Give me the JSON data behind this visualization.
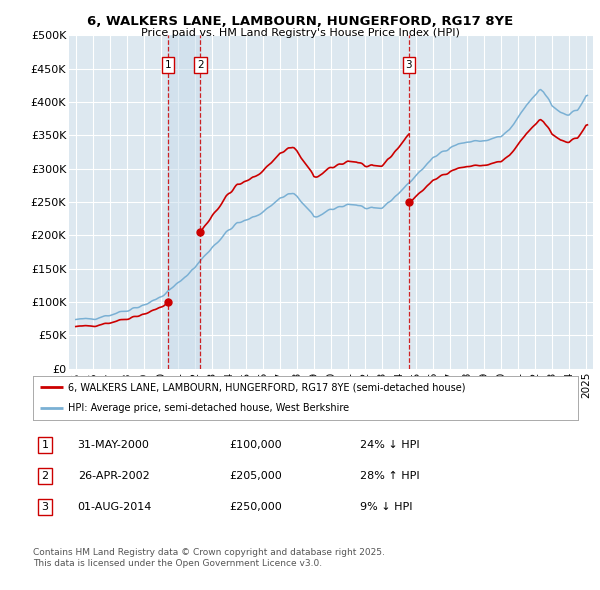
{
  "title1": "6, WALKERS LANE, LAMBOURN, HUNGERFORD, RG17 8YE",
  "title2": "Price paid vs. HM Land Registry's House Price Index (HPI)",
  "legend_line1": "6, WALKERS LANE, LAMBOURN, HUNGERFORD, RG17 8YE (semi-detached house)",
  "legend_line2": "HPI: Average price, semi-detached house, West Berkshire",
  "footnote1": "Contains HM Land Registry data © Crown copyright and database right 2025.",
  "footnote2": "This data is licensed under the Open Government Licence v3.0.",
  "price_color": "#cc0000",
  "hpi_color": "#7ab0d4",
  "annotation_color": "#cc0000",
  "bg_color": "#dde8f0",
  "grid_color": "#ffffff",
  "transaction_details": [
    {
      "num": "1",
      "date": "31-MAY-2000",
      "price": "£100,000",
      "pct": "24% ↓ HPI"
    },
    {
      "num": "2",
      "date": "26-APR-2002",
      "price": "£205,000",
      "pct": "28% ↑ HPI"
    },
    {
      "num": "3",
      "date": "01-AUG-2014",
      "price": "£250,000",
      "pct": "9% ↓ HPI"
    }
  ],
  "ylim": [
    0,
    500000
  ],
  "yticks": [
    0,
    50000,
    100000,
    150000,
    200000,
    250000,
    300000,
    350000,
    400000,
    450000,
    500000
  ],
  "ytick_labels": [
    "£0",
    "£50K",
    "£100K",
    "£150K",
    "£200K",
    "£250K",
    "£300K",
    "£350K",
    "£400K",
    "£450K",
    "£500K"
  ],
  "trans1_date": 2000.415,
  "trans2_date": 2002.32,
  "trans3_date": 2014.585,
  "trans1_price": 100000,
  "trans2_price": 205000,
  "trans3_price": 250000,
  "xlim_left": 1994.6,
  "xlim_right": 2025.4
}
